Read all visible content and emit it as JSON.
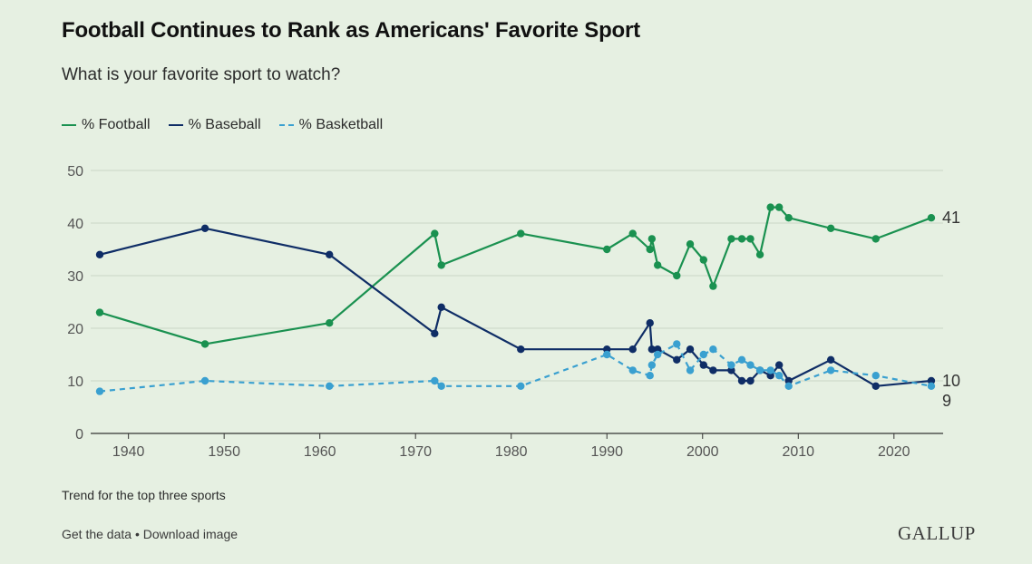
{
  "header": {
    "title": "Football Continues to Rank as Americans' Favorite Sport",
    "subtitle": "What is your favorite sport to watch?"
  },
  "legend": [
    {
      "label": "% Football",
      "color": "#1a9150",
      "dashed": false
    },
    {
      "label": "% Baseball",
      "color": "#0f2d66",
      "dashed": false
    },
    {
      "label": "% Basketball",
      "color": "#3aa0d0",
      "dashed": true
    }
  ],
  "note": "Trend for the top three sports",
  "footer": {
    "get_data": "Get the data",
    "separator": "•",
    "download": "Download image"
  },
  "brand": "GALLUP",
  "chart_data": {
    "type": "line",
    "title": "Football Continues to Rank as Americans' Favorite Sport",
    "subtitle": "What is your favorite sport to watch?",
    "xlabel": "",
    "ylabel": "",
    "xlim": [
      1937,
      2024
    ],
    "ylim": [
      0,
      50
    ],
    "x_ticks": [
      1940,
      1950,
      1960,
      1970,
      1980,
      1990,
      2000,
      2010,
      2020
    ],
    "y_ticks": [
      0,
      10,
      20,
      30,
      40,
      50
    ],
    "grid": true,
    "legend_position": "top-left",
    "series": [
      {
        "name": "% Football",
        "color": "#1a9150",
        "dashed": false,
        "end_label": "41",
        "points": [
          [
            1937,
            23
          ],
          [
            1948,
            17
          ],
          [
            1961,
            21
          ],
          [
            1972,
            38
          ],
          [
            1972.7,
            32
          ],
          [
            1981,
            38
          ],
          [
            1990,
            35
          ],
          [
            1992.7,
            38
          ],
          [
            1994.5,
            35
          ],
          [
            1994.7,
            37
          ],
          [
            1995.3,
            32
          ],
          [
            1997.3,
            30
          ],
          [
            1998.7,
            36
          ],
          [
            2000.1,
            33
          ],
          [
            2001.1,
            28
          ],
          [
            2003,
            37
          ],
          [
            2004.1,
            37
          ],
          [
            2005,
            37
          ],
          [
            2006,
            34
          ],
          [
            2007.1,
            43
          ],
          [
            2008,
            43
          ],
          [
            2009,
            41
          ],
          [
            2013.4,
            39
          ],
          [
            2018.1,
            37
          ],
          [
            2023.9,
            41
          ]
        ]
      },
      {
        "name": "% Baseball",
        "color": "#0f2d66",
        "dashed": false,
        "end_label": "10",
        "points": [
          [
            1937,
            34
          ],
          [
            1948,
            39
          ],
          [
            1961,
            34
          ],
          [
            1972,
            19
          ],
          [
            1972.7,
            24
          ],
          [
            1981,
            16
          ],
          [
            1990,
            16
          ],
          [
            1992.7,
            16
          ],
          [
            1994.5,
            21
          ],
          [
            1994.7,
            16
          ],
          [
            1995.3,
            16
          ],
          [
            1997.3,
            14
          ],
          [
            1998.7,
            16
          ],
          [
            2000.1,
            13
          ],
          [
            2001.1,
            12
          ],
          [
            2003,
            12
          ],
          [
            2004.1,
            10
          ],
          [
            2005,
            10
          ],
          [
            2006,
            12
          ],
          [
            2007.1,
            11
          ],
          [
            2008,
            13
          ],
          [
            2009,
            10
          ],
          [
            2013.4,
            14
          ],
          [
            2018.1,
            9
          ],
          [
            2023.9,
            10
          ]
        ]
      },
      {
        "name": "% Basketball",
        "color": "#3aa0d0",
        "dashed": true,
        "end_label": "9",
        "points": [
          [
            1937,
            8
          ],
          [
            1948,
            10
          ],
          [
            1961,
            9
          ],
          [
            1972,
            10
          ],
          [
            1972.7,
            9
          ],
          [
            1981,
            9
          ],
          [
            1990,
            15
          ],
          [
            1992.7,
            12
          ],
          [
            1994.5,
            11
          ],
          [
            1994.7,
            13
          ],
          [
            1995.3,
            15
          ],
          [
            1997.3,
            17
          ],
          [
            1998.7,
            12
          ],
          [
            2000.1,
            15
          ],
          [
            2001.1,
            16
          ],
          [
            2003,
            13
          ],
          [
            2004.1,
            14
          ],
          [
            2005,
            13
          ],
          [
            2006,
            12
          ],
          [
            2007.1,
            12
          ],
          [
            2008,
            11
          ],
          [
            2009,
            9
          ],
          [
            2013.4,
            12
          ],
          [
            2018.1,
            11
          ],
          [
            2023.9,
            9
          ]
        ]
      }
    ]
  }
}
